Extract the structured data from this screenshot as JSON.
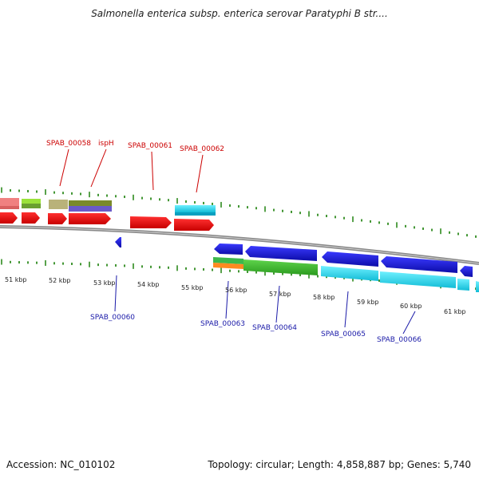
{
  "title": "Salmonella enterica subsp. enterica serovar Paratyphi B str....",
  "footer": {
    "accession": "Accession: NC_010102",
    "summary": "Topology: circular; Length: 4,858,887 bp; Genes: 5,740"
  },
  "scale_labels": [
    "51 kbp",
    "52 kbp",
    "53 kbp",
    "54 kbp",
    "55 kbp",
    "56 kbp",
    "57 kbp",
    "58 kbp",
    "59 kbp",
    "60 kbp",
    "61 kbp"
  ],
  "genes_top": [
    "SPAB_00058",
    "ispH",
    "SPAB_00061",
    "SPAB_00062"
  ],
  "genes_bottom": [
    "SPAB_00060",
    "SPAB_00063",
    "SPAB_00064",
    "SPAB_00065",
    "SPAB_00066"
  ],
  "colors": {
    "forward": "#e60000",
    "reverse": "#1a1ad6",
    "cyan": "#22d4ee",
    "green": "#3bb62e",
    "tick": "#2e8b1e",
    "backbone": "#888888"
  }
}
